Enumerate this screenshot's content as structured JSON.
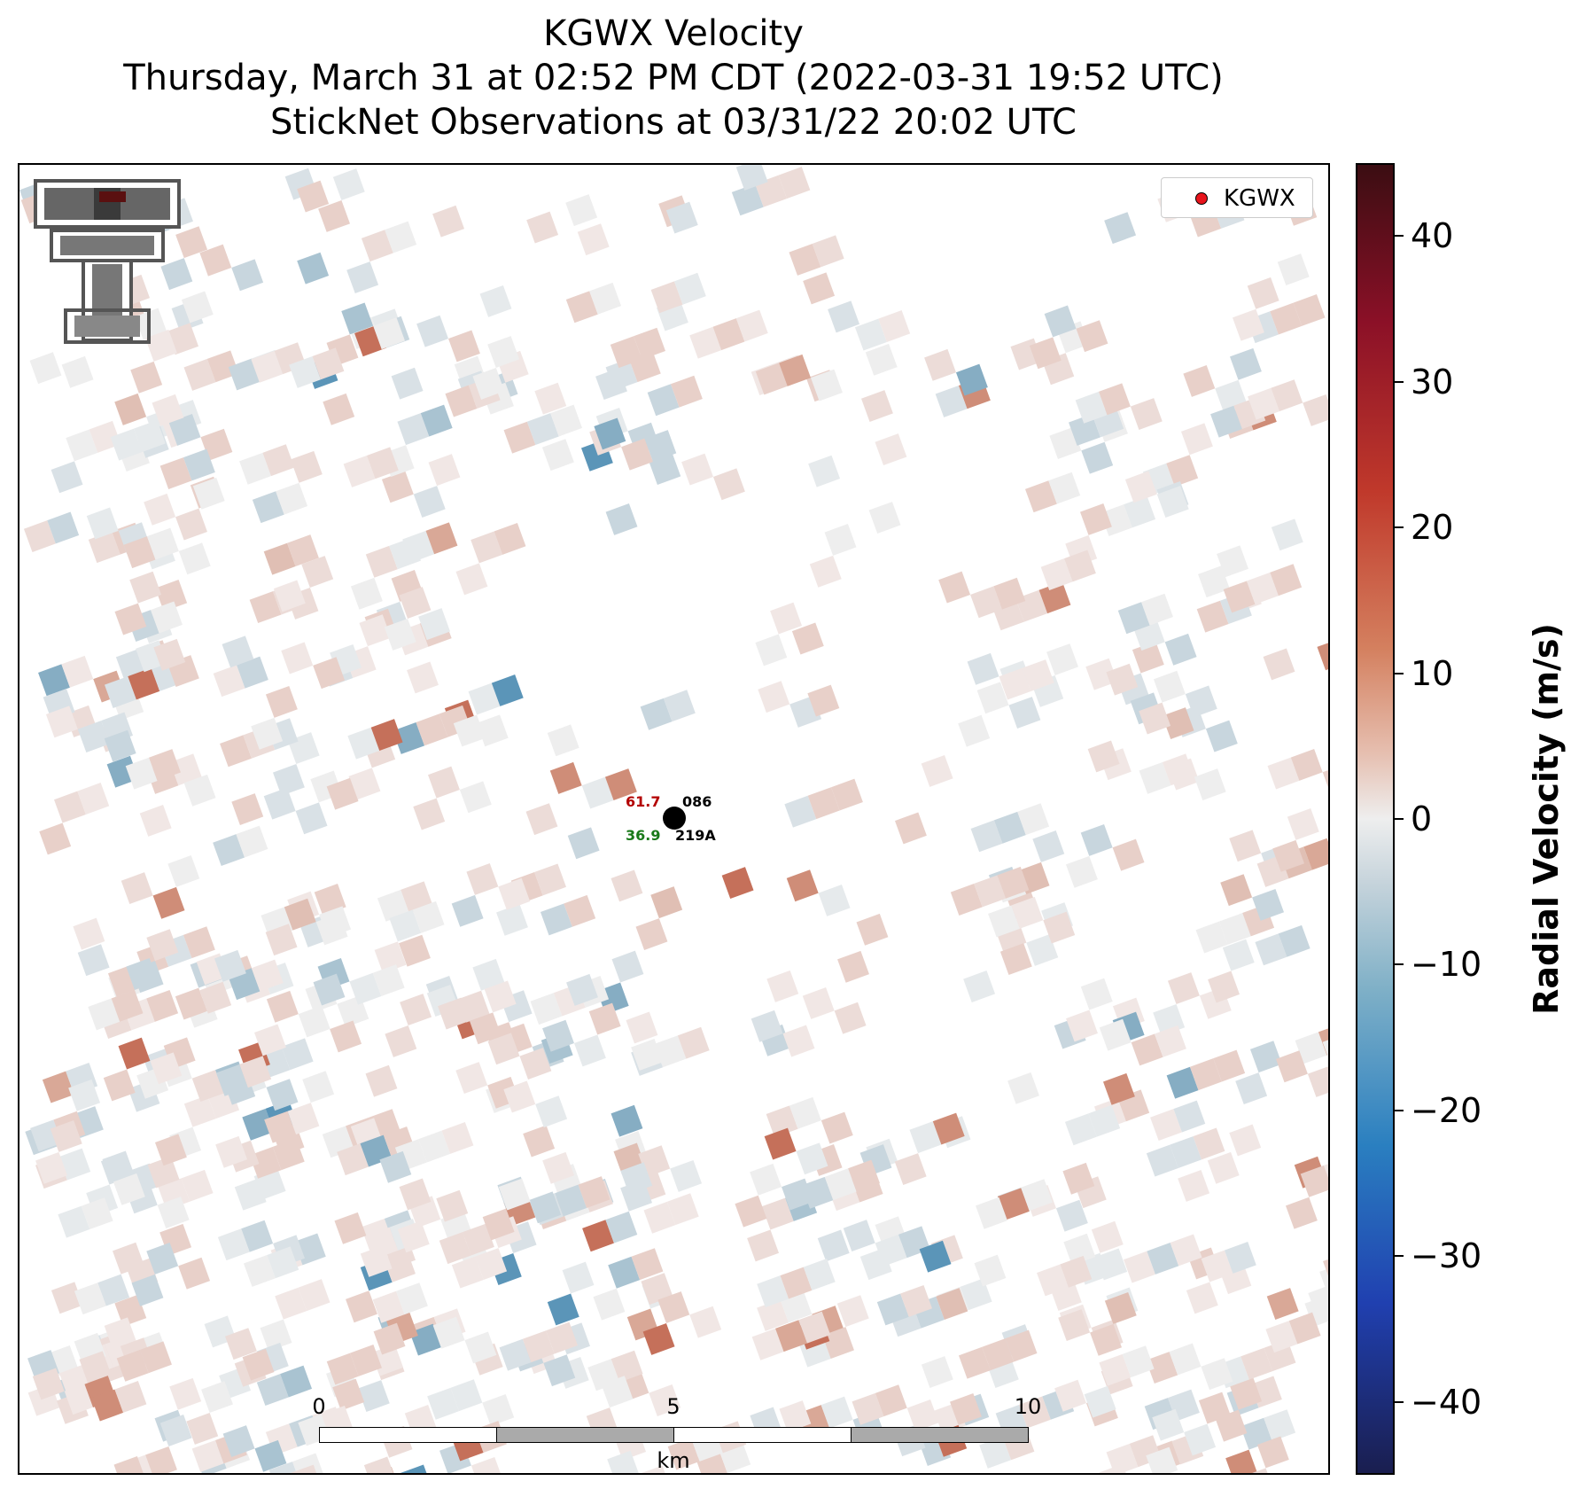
{
  "title": {
    "line1": "KGWX Velocity",
    "line2": "Thursday, March 31 at 02:52 PM CDT (2022-03-31 19:52 UTC)",
    "line3": "StickNet Observations at 03/31/22 20:02 UTC"
  },
  "legend": {
    "label": "KGWX",
    "marker_color": "#e8141c"
  },
  "station": {
    "temp": "61.7",
    "id_top": "086",
    "dewpoint": "36.9",
    "id_bottom": "219A"
  },
  "scale_bar": {
    "ticks": [
      "0",
      "5",
      "10"
    ],
    "unit": "km"
  },
  "colorbar": {
    "label": "Radial Velocity (m/s)",
    "ticks": [
      "40",
      "30",
      "20",
      "10",
      "0",
      "−10",
      "−20",
      "−30",
      "−40"
    ],
    "range": [
      -45,
      45
    ]
  },
  "logo": {
    "icon": "double-t-logo-icon"
  }
}
